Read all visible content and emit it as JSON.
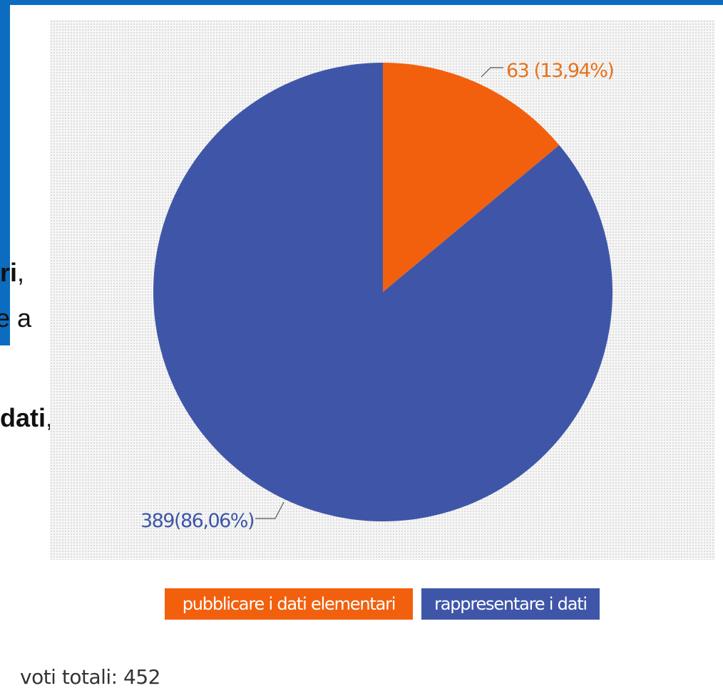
{
  "background_slide": {
    "accent_color": "#0b6cc0",
    "line1_bold": "ri",
    "line1_rest": ",",
    "line2": "e a",
    "line3_bold": "dati",
    "line3_rest": ","
  },
  "chart_data": {
    "type": "pie",
    "slices": [
      {
        "label": "pubblicare i dati elementari",
        "value": 63,
        "percent": "13,94%",
        "data_label": "63 (13,94%)",
        "color": "#f2600e"
      },
      {
        "label": "rappresentare i dati",
        "value": 389,
        "percent": "86,06%",
        "data_label": "389(86,06%)",
        "color": "#3f56a8"
      }
    ],
    "legend_position": "bottom",
    "label_color": "#e8721c",
    "label_color_2": "#3f56a8"
  },
  "footer": {
    "total_label": "voti totali: 452"
  }
}
